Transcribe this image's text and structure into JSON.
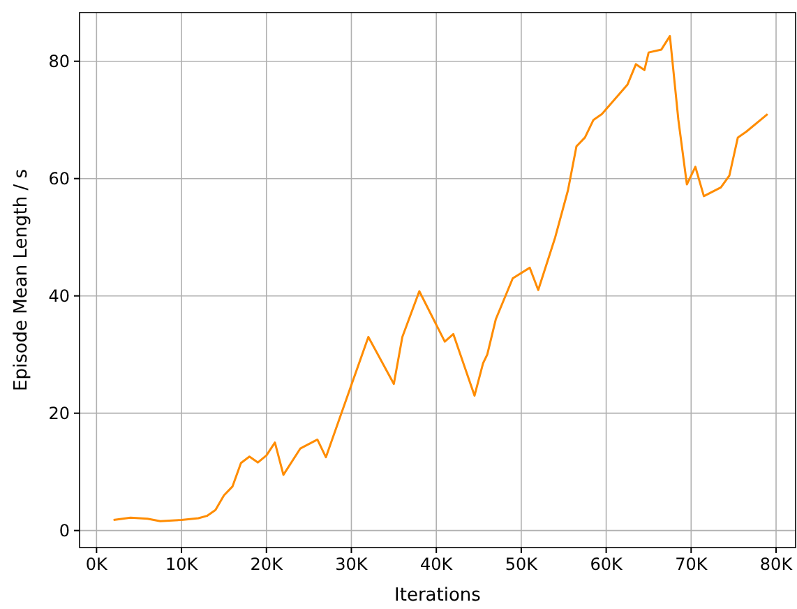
{
  "chart_data": {
    "type": "line",
    "xlabel": "Iterations",
    "ylabel": "Episode Mean Length / s",
    "x": [
      2,
      4,
      6,
      7.5,
      10,
      12,
      13,
      14,
      15,
      16,
      17,
      18,
      19,
      20,
      21,
      22,
      24,
      26,
      27,
      32,
      35,
      36,
      38,
      41,
      42,
      44.5,
      45.5,
      46,
      47,
      49,
      51,
      52,
      54,
      55.5,
      56.5,
      57.5,
      58.5,
      59.5,
      61,
      62.5,
      63.5,
      64.5,
      65,
      66.5,
      67.5,
      68.5,
      69.5,
      70.5,
      71.5,
      73.5,
      74.5,
      75.5,
      76.5,
      79
    ],
    "series": [
      {
        "color": "#ff8c00",
        "values": [
          1.8,
          2.2,
          2,
          1.6,
          1.8,
          2.1,
          2.5,
          3.5,
          6,
          7.5,
          11.5,
          12.6,
          11.6,
          12.8,
          15,
          9.5,
          14,
          15.5,
          12.5,
          33,
          25,
          33,
          40.8,
          32.2,
          33.5,
          23,
          28.5,
          30,
          36,
          43,
          44.8,
          41,
          50,
          58,
          65.5,
          67,
          70,
          71,
          73.5,
          76,
          79.5,
          78.5,
          81.5,
          82,
          84.3,
          70,
          59,
          62,
          57,
          58.5,
          60.5,
          67,
          68,
          71
        ]
      }
    ],
    "xlim": [
      -2,
      82.3
    ],
    "ylim": [
      -2.9,
      88.3
    ],
    "xticks": [
      {
        "value": 0,
        "label": "0K"
      },
      {
        "value": 10,
        "label": "10K"
      },
      {
        "value": 20,
        "label": "20K"
      },
      {
        "value": 30,
        "label": "30K"
      },
      {
        "value": 40,
        "label": "40K"
      },
      {
        "value": 50,
        "label": "50K"
      },
      {
        "value": 60,
        "label": "60K"
      },
      {
        "value": 70,
        "label": "70K"
      },
      {
        "value": 80,
        "label": "80K"
      }
    ],
    "yticks": [
      0,
      20,
      40,
      60,
      80
    ],
    "grid": true,
    "line_style": "solid"
  }
}
